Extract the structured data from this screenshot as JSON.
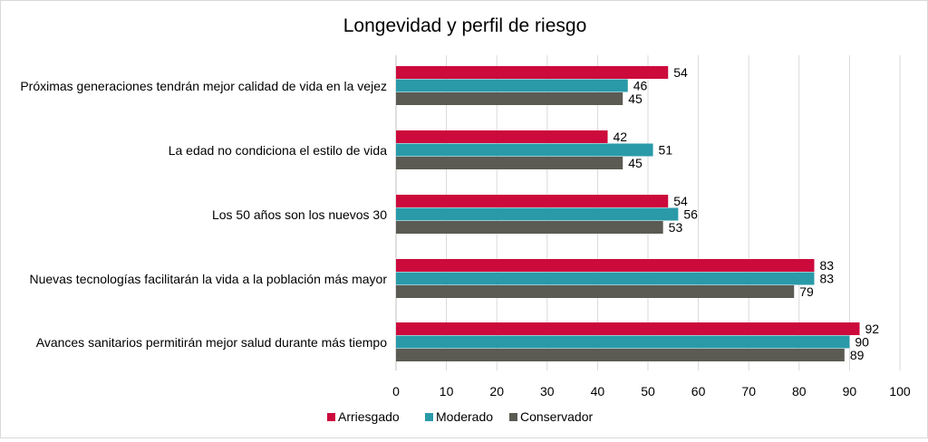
{
  "chart_data": {
    "type": "bar",
    "orientation": "horizontal",
    "title": "Longevidad  y perfil de riesgo",
    "categories": [
      "Próximas generaciones tendrán mejor calidad de vida en la vejez",
      "La edad no condiciona el estilo de vida",
      "Los 50 años son los nuevos 30",
      "Nuevas tecnologías facilitarán la vida a la población más mayor",
      "Avances sanitarios permitirán mejor salud durante más tiempo"
    ],
    "series": [
      {
        "name": "Arriesgado",
        "color": "#cc0a3c",
        "values": [
          54,
          42,
          54,
          83,
          92
        ]
      },
      {
        "name": "Moderado",
        "color": "#2a9aa8",
        "values": [
          46,
          51,
          56,
          83,
          90
        ]
      },
      {
        "name": "Conservador",
        "color": "#5b5b53",
        "values": [
          45,
          45,
          53,
          79,
          89
        ]
      }
    ],
    "xlim": [
      0,
      100
    ],
    "x_ticks": [
      "0",
      "10",
      "20",
      "30",
      "40",
      "50",
      "60",
      "70",
      "80",
      "90",
      "100"
    ],
    "grid": "vertical",
    "legend_position": "bottom"
  }
}
